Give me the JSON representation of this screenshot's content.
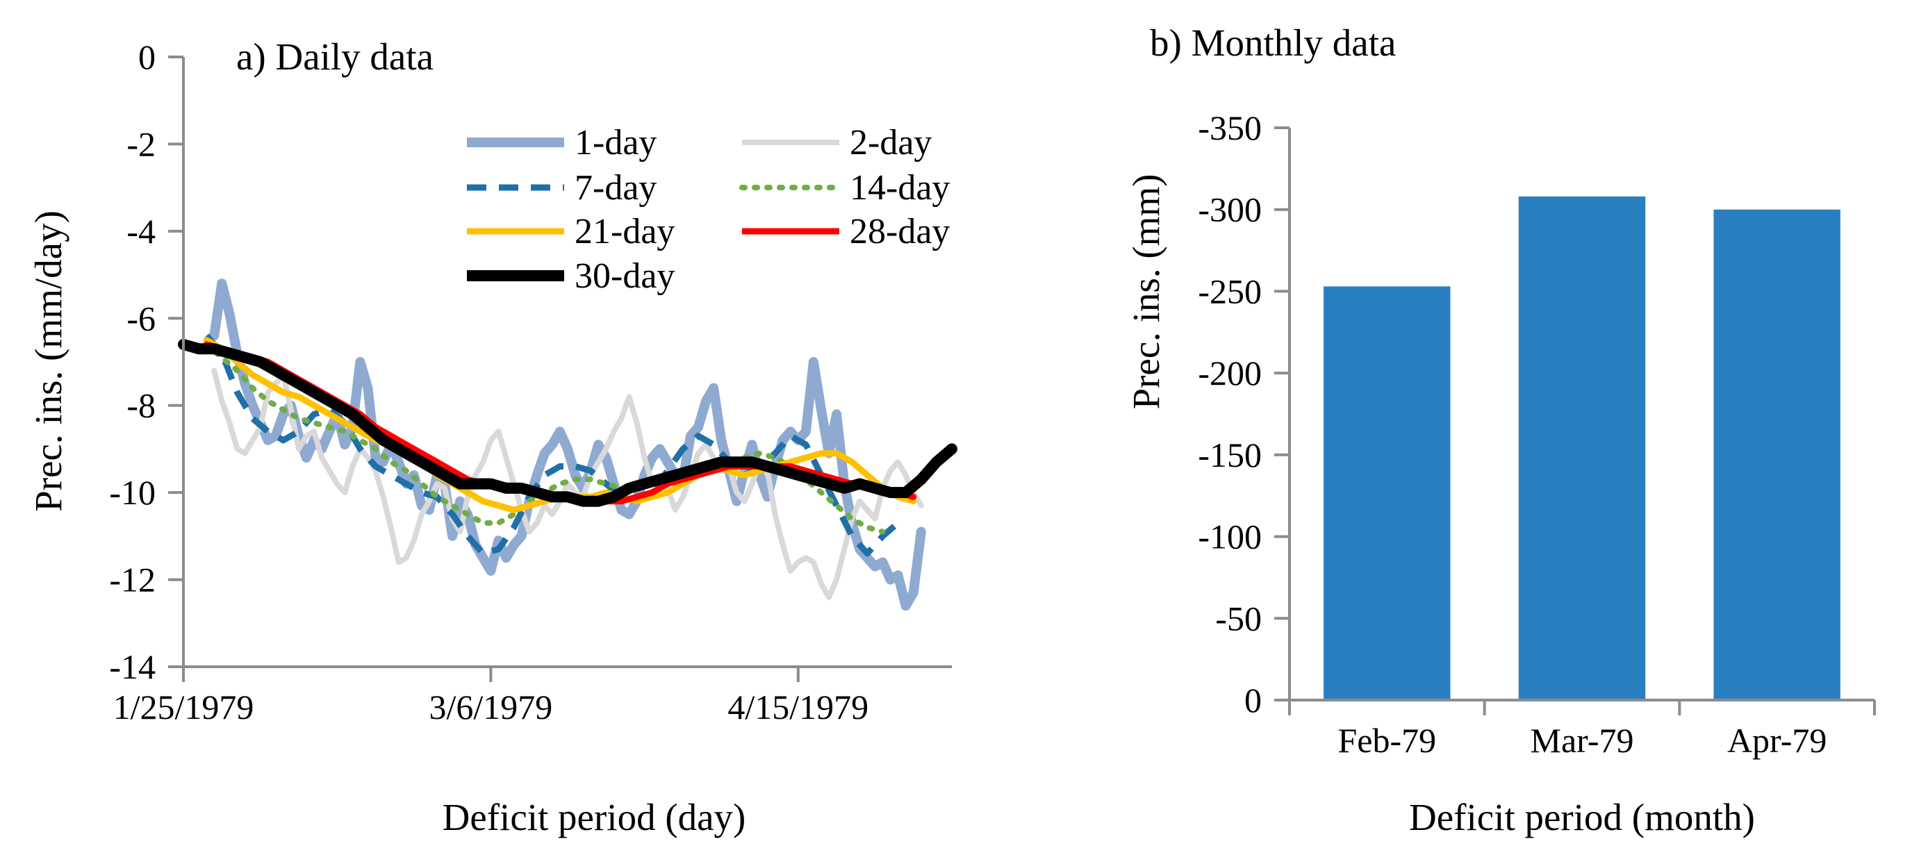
{
  "chart_data": [
    {
      "type": "line",
      "title": "a) Daily data",
      "xlabel": "Deficit period (day)",
      "ylabel": "Prec. ins. (mm/day)",
      "ylim": [
        -14,
        0
      ],
      "yticks": [
        0,
        -2,
        -4,
        -6,
        -8,
        -10,
        -12,
        -14
      ],
      "xlim": [
        0,
        100
      ],
      "xticks": [
        {
          "day": 0,
          "label": "1/25/1979"
        },
        {
          "day": 40,
          "label": "3/6/1979"
        },
        {
          "day": 80,
          "label": "4/15/1979"
        }
      ],
      "legend_position": "top-right",
      "series": [
        {
          "name": "1-day",
          "color": "#8faad1",
          "width": 14,
          "dash": "",
          "x": [
            4,
            5,
            6,
            7,
            8,
            9,
            10,
            11,
            12,
            13,
            14,
            15,
            16,
            17,
            18,
            19,
            20,
            21,
            22,
            23,
            24,
            25,
            26,
            27,
            28,
            29,
            30,
            31,
            32,
            33,
            34,
            35,
            36,
            37,
            38,
            39,
            40,
            41,
            42,
            43,
            44,
            45,
            46,
            47,
            48,
            49,
            50,
            51,
            52,
            53,
            54,
            55,
            56,
            57,
            58,
            59,
            60,
            61,
            62,
            63,
            64,
            65,
            66,
            67,
            68,
            69,
            70,
            71,
            72,
            73,
            74,
            75,
            76,
            77,
            78,
            79,
            80,
            81,
            82,
            83,
            84,
            85,
            86,
            87,
            88,
            89,
            90,
            91,
            92,
            93,
            94,
            95,
            96
          ],
          "y": [
            -6.4,
            -5.2,
            -5.9,
            -6.8,
            -7.5,
            -8.0,
            -8.4,
            -8.8,
            -8.7,
            -8.2,
            -8.0,
            -8.7,
            -9.2,
            -8.8,
            -9.0,
            -8.6,
            -8.2,
            -8.9,
            -8.5,
            -7.0,
            -7.6,
            -9.2,
            -9.3,
            -8.9,
            -9.3,
            -9.8,
            -9.6,
            -10.3,
            -10.4,
            -9.6,
            -9.8,
            -11.0,
            -10.2,
            -10.5,
            -11.2,
            -11.5,
            -11.8,
            -11.1,
            -11.5,
            -11.2,
            -11.0,
            -10.2,
            -9.6,
            -9.1,
            -8.9,
            -8.6,
            -9.0,
            -9.6,
            -9.9,
            -9.5,
            -8.9,
            -9.2,
            -9.8,
            -10.4,
            -10.5,
            -10.2,
            -9.6,
            -9.2,
            -9.0,
            -9.3,
            -9.6,
            -9.7,
            -8.7,
            -8.5,
            -7.9,
            -7.6,
            -8.8,
            -9.5,
            -10.2,
            -9.5,
            -8.9,
            -9.6,
            -10.1,
            -9.4,
            -8.8,
            -8.6,
            -8.8,
            -8.6,
            -7.0,
            -8.1,
            -9.1,
            -8.2,
            -9.8,
            -10.7,
            -11.3,
            -11.5,
            -11.7,
            -11.6,
            -12.0,
            -11.9,
            -12.6,
            -12.3,
            -10.9
          ]
        },
        {
          "name": "2-day",
          "color": "#d9d9d9",
          "width": 8,
          "dash": "",
          "x": [
            4,
            5,
            6,
            7,
            8,
            9,
            10,
            11,
            12,
            13,
            14,
            15,
            16,
            17,
            18,
            19,
            20,
            21,
            22,
            23,
            24,
            25,
            26,
            27,
            28,
            29,
            30,
            31,
            32,
            33,
            34,
            35,
            36,
            37,
            38,
            39,
            40,
            41,
            42,
            43,
            44,
            45,
            46,
            47,
            48,
            49,
            50,
            51,
            52,
            53,
            54,
            55,
            56,
            57,
            58,
            59,
            60,
            61,
            62,
            63,
            64,
            65,
            66,
            67,
            68,
            69,
            70,
            71,
            72,
            73,
            74,
            75,
            76,
            77,
            78,
            79,
            80,
            81,
            82,
            83,
            84,
            85,
            86,
            87,
            88,
            89,
            90,
            91,
            92,
            93,
            94,
            95,
            96
          ],
          "y": [
            -7.2,
            -7.9,
            -8.4,
            -9.0,
            -9.1,
            -8.8,
            -8.5,
            -7.7,
            -7.5,
            -7.3,
            -8.1,
            -9.0,
            -8.7,
            -8.6,
            -9.2,
            -9.5,
            -9.8,
            -10.0,
            -9.4,
            -9.0,
            -9.2,
            -9.5,
            -10.1,
            -10.8,
            -11.6,
            -11.5,
            -11.1,
            -10.5,
            -10.2,
            -9.8,
            -9.9,
            -10.6,
            -10.9,
            -10.1,
            -9.6,
            -9.3,
            -8.8,
            -8.6,
            -9.2,
            -9.8,
            -10.4,
            -10.9,
            -10.7,
            -10.3,
            -10.5,
            -10.2,
            -9.8,
            -10.0,
            -10.1,
            -9.6,
            -9.3,
            -9.0,
            -8.6,
            -8.3,
            -7.8,
            -8.4,
            -9.2,
            -9.8,
            -9.7,
            -9.9,
            -10.4,
            -10.1,
            -9.6,
            -9.1,
            -8.9,
            -9.2,
            -9.5,
            -9.4,
            -10.0,
            -10.2,
            -9.8,
            -9.3,
            -9.5,
            -10.5,
            -11.2,
            -11.8,
            -11.6,
            -11.5,
            -11.6,
            -12.1,
            -12.4,
            -12.0,
            -11.3,
            -10.6,
            -10.2,
            -10.4,
            -10.6,
            -9.9,
            -9.5,
            -9.3,
            -9.6,
            -10.0,
            -10.3
          ]
        },
        {
          "name": "7-day",
          "color": "#1f6fa8",
          "width": 9,
          "dash": "28,18",
          "x": [
            3,
            5,
            7,
            9,
            11,
            13,
            15,
            17,
            19,
            21,
            23,
            25,
            27,
            29,
            31,
            33,
            35,
            37,
            39,
            41,
            43,
            45,
            47,
            49,
            51,
            53,
            55,
            57,
            59,
            61,
            63,
            65,
            67,
            69,
            71,
            73,
            75,
            77,
            79,
            81,
            83,
            85,
            87,
            89,
            91,
            93
          ],
          "y": [
            -6.4,
            -6.8,
            -7.7,
            -8.3,
            -8.6,
            -8.8,
            -8.6,
            -8.2,
            -8.1,
            -8.4,
            -9.0,
            -9.4,
            -9.6,
            -9.8,
            -10.0,
            -10.1,
            -10.5,
            -11.0,
            -11.4,
            -11.3,
            -10.8,
            -10.1,
            -9.6,
            -9.4,
            -9.4,
            -9.5,
            -9.8,
            -10.1,
            -10.2,
            -10.0,
            -9.5,
            -9.0,
            -8.7,
            -8.9,
            -9.3,
            -9.6,
            -9.4,
            -9.1,
            -8.7,
            -8.9,
            -9.6,
            -10.3,
            -11.0,
            -11.4,
            -11.0,
            -10.7
          ]
        },
        {
          "name": "14-day",
          "color": "#70ad47",
          "width": 8,
          "dash": "4,14",
          "x": [
            3,
            5,
            7,
            9,
            11,
            13,
            15,
            17,
            19,
            21,
            23,
            25,
            27,
            29,
            31,
            33,
            35,
            37,
            39,
            41,
            43,
            45,
            47,
            49,
            51,
            53,
            55,
            57,
            59,
            61,
            63,
            65,
            67,
            69,
            71,
            73,
            75,
            77,
            79,
            81,
            83,
            85,
            87,
            89,
            91
          ],
          "y": [
            -6.6,
            -6.9,
            -7.2,
            -7.6,
            -7.9,
            -8.1,
            -8.3,
            -8.4,
            -8.5,
            -8.6,
            -8.8,
            -9.0,
            -9.3,
            -9.5,
            -9.8,
            -10.1,
            -10.3,
            -10.5,
            -10.7,
            -10.7,
            -10.5,
            -10.2,
            -10.0,
            -9.8,
            -9.7,
            -9.7,
            -9.8,
            -9.9,
            -9.9,
            -9.8,
            -9.7,
            -9.6,
            -9.5,
            -9.4,
            -9.3,
            -9.2,
            -9.1,
            -9.2,
            -9.4,
            -9.7,
            -10.0,
            -10.3,
            -10.6,
            -10.8,
            -10.9
          ]
        },
        {
          "name": "21-day",
          "color": "#ffc000",
          "width": 9,
          "dash": "",
          "x": [
            3,
            5,
            7,
            9,
            11,
            13,
            15,
            17,
            19,
            21,
            23,
            25,
            27,
            29,
            31,
            33,
            35,
            37,
            39,
            41,
            43,
            45,
            47,
            49,
            51,
            53,
            55,
            57,
            59,
            61,
            63,
            65,
            67,
            69,
            71,
            73,
            75,
            77,
            79,
            81,
            83,
            85,
            87,
            89,
            91,
            93,
            95
          ],
          "y": [
            -6.5,
            -6.7,
            -7.0,
            -7.3,
            -7.5,
            -7.7,
            -7.8,
            -8.0,
            -8.2,
            -8.4,
            -8.6,
            -8.8,
            -8.9,
            -9.1,
            -9.3,
            -9.6,
            -9.8,
            -10.0,
            -10.2,
            -10.3,
            -10.4,
            -10.3,
            -10.2,
            -10.1,
            -10.1,
            -10.1,
            -10.0,
            -10.1,
            -10.2,
            -10.1,
            -10.0,
            -9.8,
            -9.6,
            -9.4,
            -9.5,
            -9.6,
            -9.5,
            -9.4,
            -9.3,
            -9.2,
            -9.1,
            -9.1,
            -9.3,
            -9.6,
            -9.9,
            -10.1,
            -10.2
          ]
        },
        {
          "name": "28-day",
          "color": "#ff0000",
          "width": 9,
          "dash": "",
          "x": [
            3,
            5,
            7,
            9,
            11,
            13,
            15,
            17,
            19,
            21,
            23,
            25,
            27,
            29,
            31,
            33,
            35,
            37,
            39,
            41,
            43,
            45,
            47,
            49,
            51,
            53,
            55,
            57,
            59,
            61,
            63,
            65,
            67,
            69,
            71,
            73,
            75,
            77,
            79,
            81,
            83,
            85,
            87,
            89,
            91,
            93,
            95
          ],
          "y": [
            -6.6,
            -6.7,
            -6.8,
            -6.9,
            -7.0,
            -7.2,
            -7.4,
            -7.6,
            -7.8,
            -8.0,
            -8.2,
            -8.5,
            -8.7,
            -8.9,
            -9.1,
            -9.3,
            -9.5,
            -9.7,
            -9.8,
            -9.9,
            -9.9,
            -9.9,
            -10.0,
            -10.1,
            -10.1,
            -10.2,
            -10.2,
            -10.2,
            -10.1,
            -10.0,
            -9.8,
            -9.7,
            -9.6,
            -9.5,
            -9.4,
            -9.4,
            -9.4,
            -9.4,
            -9.4,
            -9.5,
            -9.6,
            -9.7,
            -9.8,
            -9.9,
            -10.0,
            -10.0,
            -10.1
          ]
        },
        {
          "name": "30-day",
          "color": "#000000",
          "width": 16,
          "dash": "",
          "x": [
            0,
            2,
            4,
            6,
            8,
            10,
            12,
            14,
            16,
            18,
            20,
            22,
            24,
            26,
            28,
            30,
            32,
            34,
            36,
            38,
            40,
            42,
            44,
            46,
            48,
            50,
            52,
            54,
            56,
            58,
            60,
            62,
            64,
            66,
            68,
            70,
            72,
            74,
            76,
            78,
            80,
            82,
            84,
            86,
            88,
            90,
            92,
            94,
            96,
            98,
            100
          ],
          "y": [
            -6.6,
            -6.7,
            -6.7,
            -6.8,
            -6.9,
            -7.0,
            -7.2,
            -7.4,
            -7.6,
            -7.8,
            -8.0,
            -8.2,
            -8.5,
            -8.8,
            -9.0,
            -9.2,
            -9.4,
            -9.6,
            -9.8,
            -9.8,
            -9.8,
            -9.9,
            -9.9,
            -10.0,
            -10.1,
            -10.1,
            -10.2,
            -10.2,
            -10.1,
            -9.9,
            -9.8,
            -9.7,
            -9.6,
            -9.5,
            -9.4,
            -9.3,
            -9.3,
            -9.3,
            -9.4,
            -9.5,
            -9.6,
            -9.7,
            -9.8,
            -9.9,
            -9.8,
            -9.9,
            -10.0,
            -10.0,
            -9.7,
            -9.3,
            -9.0
          ]
        }
      ]
    },
    {
      "type": "bar",
      "title": "b) Monthly data",
      "xlabel": "Deficit period (month)",
      "ylabel": "Prec. ins. (mm)",
      "categories": [
        "Feb-79",
        "Mar-79",
        "Apr-79"
      ],
      "values": [
        -253,
        -308,
        -300
      ],
      "ylim": [
        0,
        -350
      ],
      "yticks": [
        0,
        -50,
        -100,
        -150,
        -200,
        -250,
        -300,
        -350
      ],
      "bar_color": "#2a7fc1"
    }
  ]
}
